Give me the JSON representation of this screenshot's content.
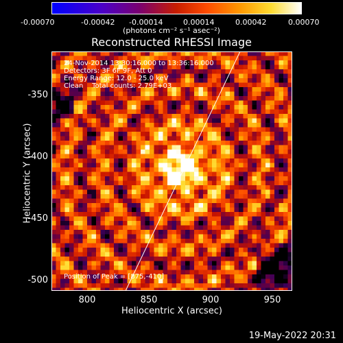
{
  "colorbar": {
    "ticks": [
      "-0.00070",
      "-0.00042",
      "-0.00014",
      "0.00014",
      "0.00042",
      "0.00070"
    ],
    "unit": "(photons cm⁻² s⁻¹ asec⁻²)"
  },
  "title": "Reconstructed RHESSI Image",
  "info": {
    "line1": "24-Nov-2014 13:30:16.000 to 13:36:16.000",
    "line2": "Detectors: 3F 6F 9F, Att 0",
    "line3": "Energy Range: 12.0 - 25.0 keV",
    "line4": "Clean    Total counts: 2.79E+03",
    "peak": "Position of Peak = [875,-410]"
  },
  "axes": {
    "x_title": "Heliocentric X (arcsec)",
    "y_title": "Heliocentric Y (arcsec)",
    "x_ticks": [
      "800",
      "850",
      "900",
      "950"
    ],
    "y_ticks": [
      "-350",
      "-400",
      "-450",
      "-500"
    ]
  },
  "date_stamp": "19-May-2022 20:31"
}
